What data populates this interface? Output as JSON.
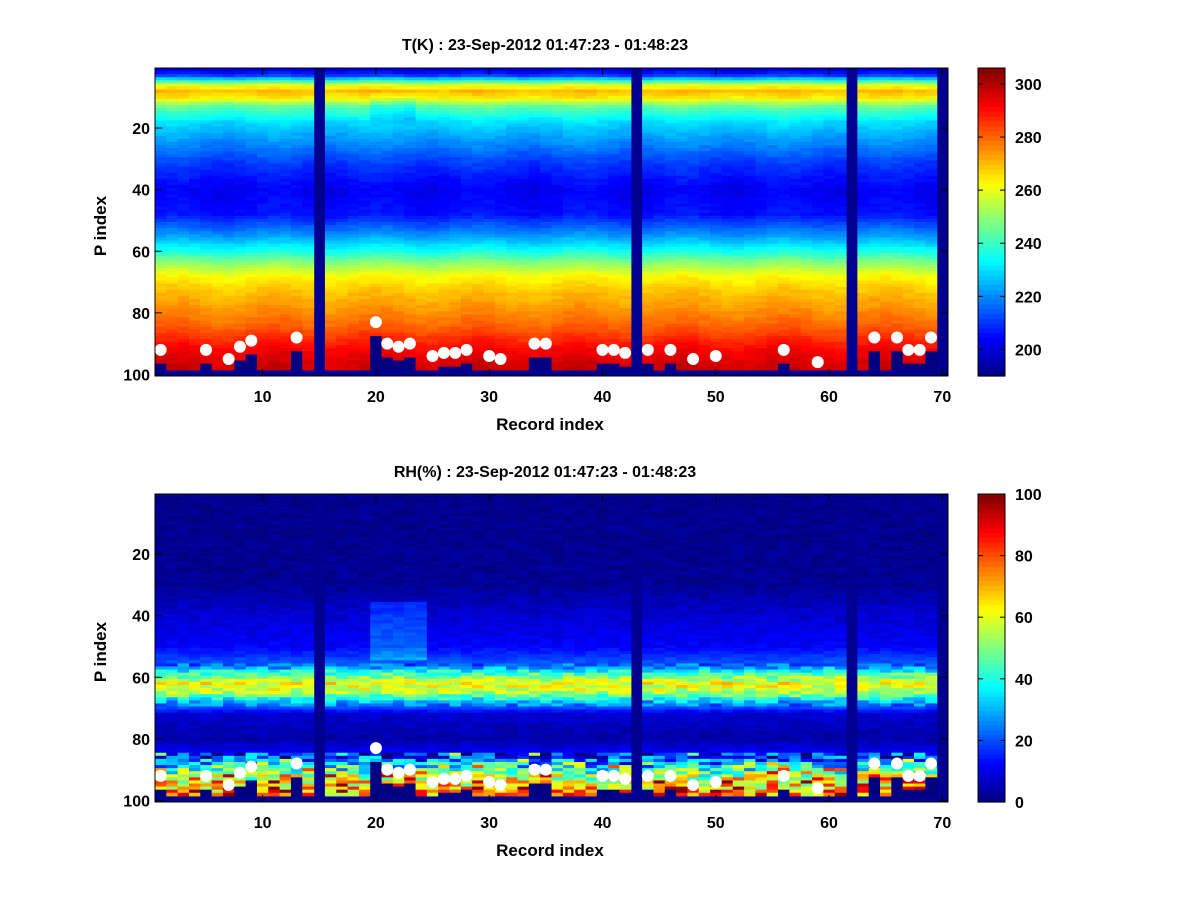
{
  "chart_data": [
    {
      "type": "heatmap",
      "title": "T(K) : 23-Sep-2012 01:47:23 - 01:48:23",
      "xlabel": "Record index",
      "ylabel": "P index",
      "xlim": [
        0.5,
        70.5
      ],
      "ylim": [
        0.5,
        100.5
      ],
      "y_direction": "reversed",
      "x_ticks": [
        10,
        20,
        30,
        40,
        50,
        60,
        70
      ],
      "y_ticks": [
        20,
        40,
        60,
        80,
        100
      ],
      "colormap": "jet",
      "colorbar": {
        "range": [
          190,
          306
        ],
        "ticks": [
          200,
          220,
          240,
          260,
          280,
          300
        ]
      },
      "missing_records": [
        15,
        43,
        62,
        70
      ],
      "profile_levels": [
        [
          1,
          200
        ],
        [
          3,
          212
        ],
        [
          6,
          258
        ],
        [
          8,
          270
        ],
        [
          10,
          265
        ],
        [
          13,
          245
        ],
        [
          18,
          230
        ],
        [
          25,
          220
        ],
        [
          32,
          210
        ],
        [
          40,
          203
        ],
        [
          48,
          206
        ],
        [
          55,
          222
        ],
        [
          60,
          236
        ],
        [
          64,
          250
        ],
        [
          68,
          262
        ],
        [
          72,
          268
        ],
        [
          76,
          272
        ],
        [
          80,
          276
        ],
        [
          84,
          280
        ],
        [
          88,
          286
        ],
        [
          92,
          292
        ],
        [
          96,
          296
        ],
        [
          100,
          298
        ]
      ],
      "surface_points": {
        "x": [
          1,
          5,
          7,
          8,
          9,
          13,
          20,
          21,
          22,
          23,
          25,
          26,
          27,
          28,
          30,
          31,
          34,
          35,
          40,
          41,
          42,
          44,
          46,
          48,
          50,
          56,
          59,
          64,
          66,
          67,
          68,
          69
        ],
        "y": [
          92,
          92,
          95,
          91,
          89,
          88,
          83,
          90,
          91,
          90,
          94,
          93,
          93,
          92,
          94,
          95,
          90,
          90,
          92,
          92,
          93,
          92,
          92,
          95,
          94,
          92,
          96,
          88,
          88,
          92,
          92,
          88
        ]
      }
    },
    {
      "type": "heatmap",
      "title": "RH(%) : 23-Sep-2012 01:47:23 - 01:48:23",
      "xlabel": "Record index",
      "ylabel": "P index",
      "xlim": [
        0.5,
        70.5
      ],
      "ylim": [
        0.5,
        100.5
      ],
      "y_direction": "reversed",
      "x_ticks": [
        10,
        20,
        30,
        40,
        50,
        60,
        70
      ],
      "y_ticks": [
        20,
        40,
        60,
        80,
        100
      ],
      "colormap": "jet",
      "colorbar": {
        "range": [
          0,
          100
        ],
        "ticks": [
          0,
          20,
          40,
          60,
          80,
          100
        ]
      },
      "missing_records": [
        15,
        43,
        62,
        70
      ],
      "profile_levels": [
        [
          1,
          1
        ],
        [
          30,
          2
        ],
        [
          40,
          8
        ],
        [
          50,
          12
        ],
        [
          56,
          22
        ],
        [
          59,
          45
        ],
        [
          62,
          62
        ],
        [
          65,
          55
        ],
        [
          68,
          30
        ],
        [
          72,
          8
        ],
        [
          80,
          4
        ],
        [
          85,
          12
        ],
        [
          88,
          30
        ],
        [
          91,
          48
        ],
        [
          94,
          62
        ],
        [
          97,
          72
        ],
        [
          100,
          75
        ]
      ],
      "surface_points": {
        "x": [
          1,
          5,
          7,
          8,
          9,
          13,
          20,
          21,
          22,
          23,
          25,
          26,
          27,
          28,
          30,
          31,
          34,
          35,
          40,
          41,
          42,
          44,
          46,
          48,
          50,
          56,
          59,
          64,
          66,
          67,
          68,
          69
        ],
        "y": [
          92,
          92,
          95,
          91,
          89,
          88,
          83,
          90,
          91,
          90,
          94,
          93,
          93,
          92,
          94,
          95,
          90,
          90,
          92,
          92,
          93,
          92,
          92,
          95,
          94,
          92,
          96,
          88,
          88,
          92,
          92,
          88
        ]
      }
    }
  ]
}
